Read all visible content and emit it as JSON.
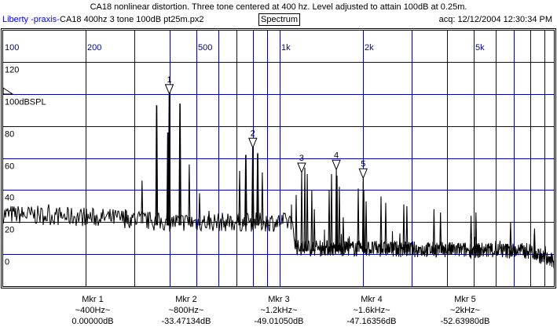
{
  "header": {
    "title": "CA18 nonlinear distortion. Three tone centered at 400 hz.  Level adjusted to attain 100dB at 0.25m.",
    "project": "Liberty -praxis-",
    "file": "CA18 400hz 3 tone 100dB pt25m.px2",
    "mode": "Spectrum",
    "acq": "acq: 12/12/2004 12:30:34 PM"
  },
  "colors": {
    "grid": "#0000a0",
    "trace": "#000000",
    "link": "#0000ff"
  },
  "chart_data": {
    "type": "line",
    "title": "Spectrum",
    "xscale": "log",
    "xlim": [
      100,
      10000
    ],
    "ylim": [
      -20,
      120
    ],
    "x_tick_labels": [
      {
        "f": 100,
        "label": "100"
      },
      {
        "f": 200,
        "label": "200"
      },
      {
        "f": 500,
        "label": "500"
      },
      {
        "f": 1000,
        "label": "1k"
      },
      {
        "f": 2000,
        "label": "2k"
      },
      {
        "f": 5000,
        "label": "5k"
      }
    ],
    "x_gridlines": [
      200,
      300,
      400,
      500,
      600,
      700,
      800,
      900,
      1000,
      2000,
      3000,
      4000,
      5000,
      6000,
      7000,
      8000,
      9000
    ],
    "y_ticks": [
      {
        "v": 120,
        "label": "120"
      },
      {
        "v": 100,
        "label": "100dBSPL"
      },
      {
        "v": 80,
        "label": "80"
      },
      {
        "v": 60,
        "label": "60"
      },
      {
        "v": 40,
        "label": "40"
      },
      {
        "v": 20,
        "label": "20"
      },
      {
        "v": 0,
        "label": "0"
      }
    ],
    "reference_level_db": 100,
    "peaks": [
      {
        "f": 278,
        "db": 28
      },
      {
        "f": 319,
        "db": 46
      },
      {
        "f": 360,
        "db": 93
      },
      {
        "f": 395,
        "db": 76
      },
      {
        "f": 400,
        "db": 100
      },
      {
        "f": 437,
        "db": 94
      },
      {
        "f": 472,
        "db": 56
      },
      {
        "f": 514,
        "db": 38
      },
      {
        "f": 556,
        "db": 27
      },
      {
        "f": 717,
        "db": 52
      },
      {
        "f": 755,
        "db": 62
      },
      {
        "f": 800,
        "db": 66.5
      },
      {
        "f": 833,
        "db": 63
      },
      {
        "f": 866,
        "db": 51
      },
      {
        "f": 919,
        "db": 18
      },
      {
        "f": 1147,
        "db": 37
      },
      {
        "f": 1200,
        "db": 51
      },
      {
        "f": 1232,
        "db": 54
      },
      {
        "f": 1257,
        "db": 50
      },
      {
        "f": 1306,
        "db": 40
      },
      {
        "f": 1333,
        "db": 28
      },
      {
        "f": 1508,
        "db": 40
      },
      {
        "f": 1538,
        "db": 50
      },
      {
        "f": 1600,
        "db": 52.8
      },
      {
        "f": 1610,
        "db": 49
      },
      {
        "f": 1642,
        "db": 42
      },
      {
        "f": 1695,
        "db": 23
      },
      {
        "f": 1920,
        "db": 41
      },
      {
        "f": 2000,
        "db": 47.4
      },
      {
        "f": 2011,
        "db": 40
      },
      {
        "f": 2049,
        "db": 33
      },
      {
        "f": 2319,
        "db": 36
      },
      {
        "f": 2412,
        "db": 32
      },
      {
        "f": 2803,
        "db": 31
      },
      {
        "f": 2875,
        "db": 30
      },
      {
        "f": 3600,
        "db": 28
      },
      {
        "f": 3800,
        "db": 26
      },
      {
        "f": 4900,
        "db": 24
      },
      {
        "f": 5100,
        "db": 26
      },
      {
        "f": 6800,
        "db": 20
      },
      {
        "f": 8300,
        "db": 16
      }
    ],
    "noise_floor": [
      {
        "f": 100,
        "db": 25
      },
      {
        "f": 300,
        "db": 22
      },
      {
        "f": 360,
        "db": 20
      },
      {
        "f": 1100,
        "db": 20
      },
      {
        "f": 1150,
        "db": 4
      },
      {
        "f": 3000,
        "db": 3
      },
      {
        "f": 8000,
        "db": 2
      },
      {
        "f": 10000,
        "db": -6
      }
    ],
    "markers": [
      {
        "id": "1",
        "f": 400,
        "db": 100
      },
      {
        "id": "2",
        "f": 800,
        "db": 66.5
      },
      {
        "id": "3",
        "f": 1200,
        "db": 51
      },
      {
        "id": "4",
        "f": 1600,
        "db": 52.8
      },
      {
        "id": "5",
        "f": 2000,
        "db": 47.4
      }
    ]
  },
  "marker_readouts": [
    {
      "name": "Mkr 1",
      "freq": "~400Hz~",
      "value": "0.00000dB"
    },
    {
      "name": "Mkr 2",
      "freq": "~800Hz~",
      "value": "-33.47134dB"
    },
    {
      "name": "Mkr 3",
      "freq": "~1.2kHz~",
      "value": "-49.01050dB"
    },
    {
      "name": "Mkr 4",
      "freq": "~1.6kHz~",
      "value": "-47.16356dB"
    },
    {
      "name": "Mkr 5",
      "freq": "~2kHz~",
      "value": "-52.63980dB"
    }
  ]
}
